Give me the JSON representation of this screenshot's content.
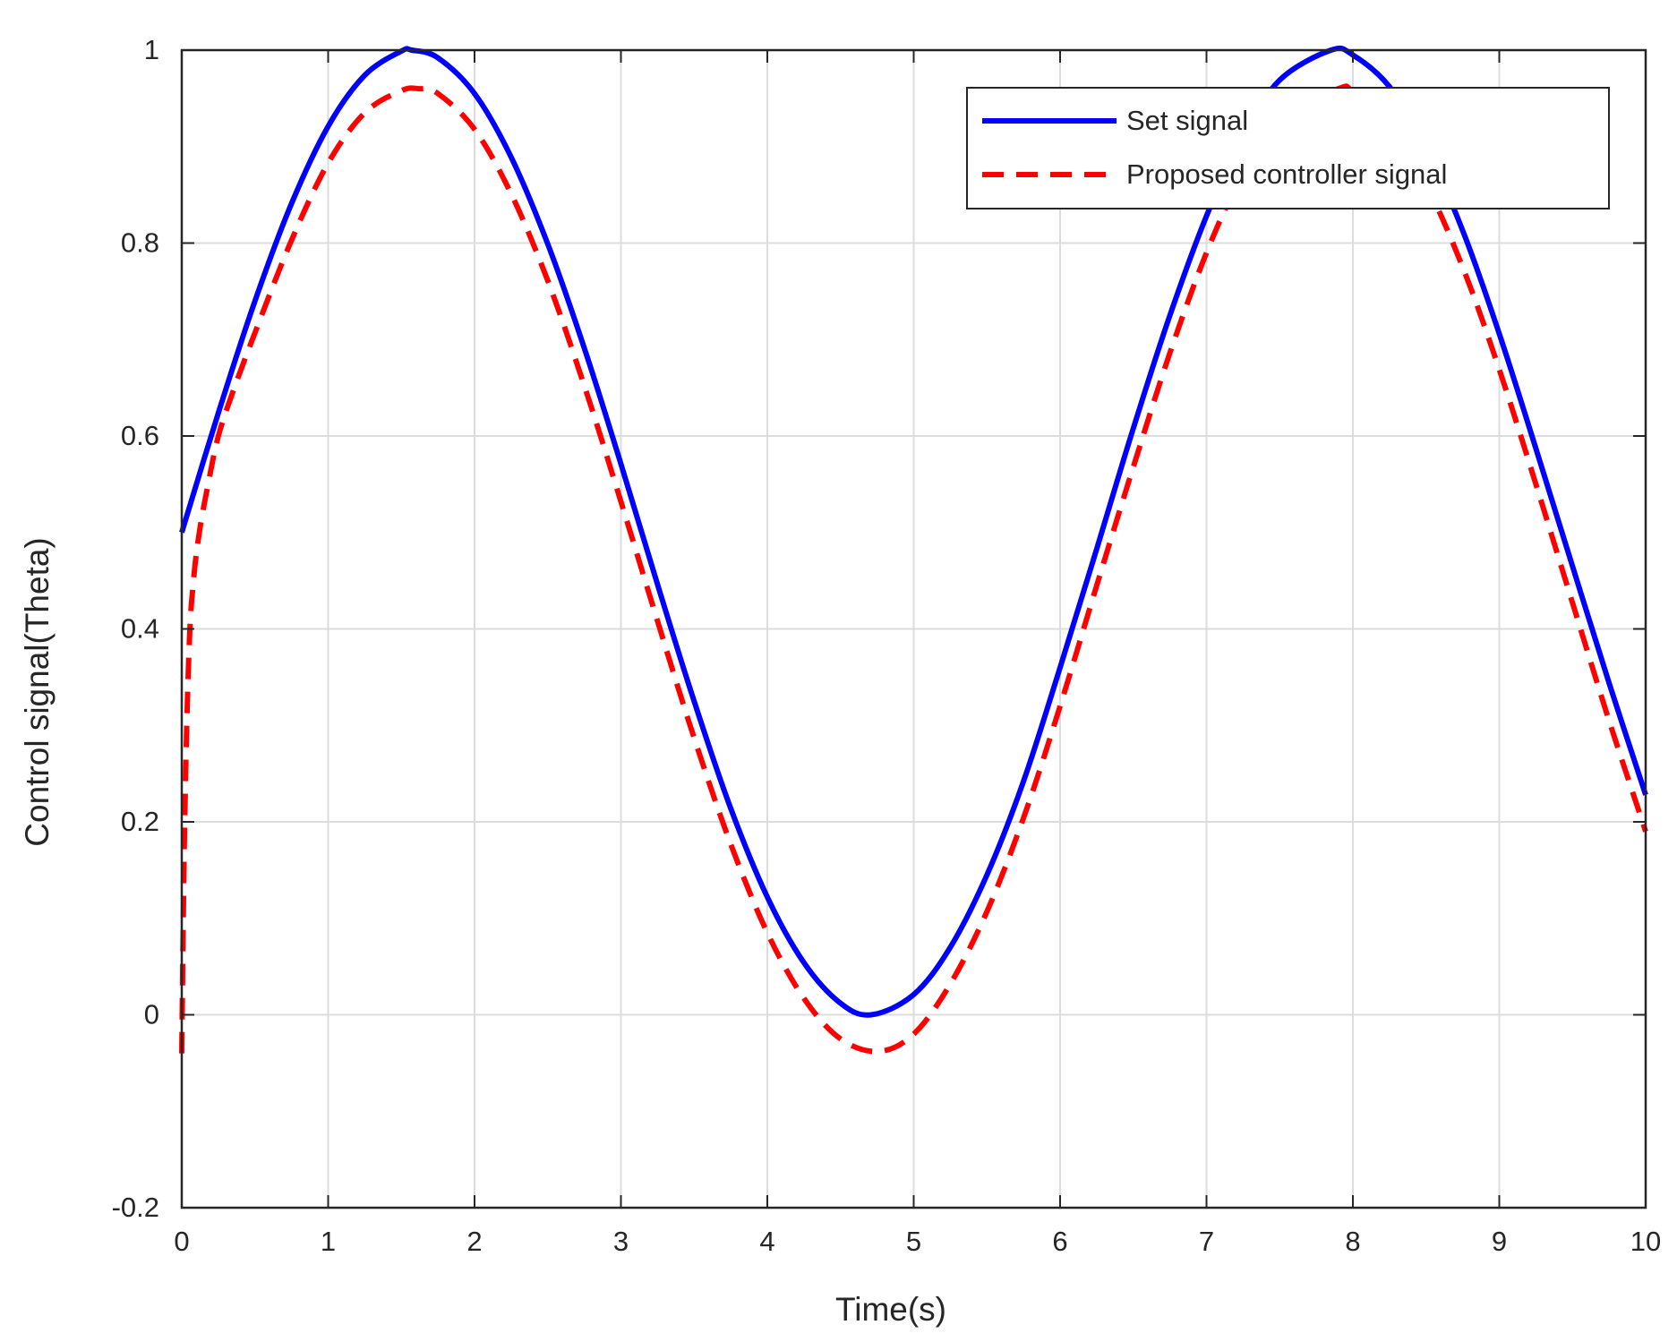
{
  "chart_data": {
    "type": "line",
    "title": "",
    "xlabel": "Time(s)",
    "ylabel": "Control signal(Theta)",
    "xlim": [
      0,
      10
    ],
    "ylim": [
      -0.2,
      1
    ],
    "grid": true,
    "xticks": [
      0,
      1,
      2,
      3,
      4,
      5,
      6,
      7,
      8,
      9,
      10
    ],
    "xtick_labels": [
      "0",
      "1",
      "2",
      "3",
      "4",
      "5",
      "6",
      "7",
      "8",
      "9",
      "10"
    ],
    "yticks": [
      -0.2,
      0,
      0.2,
      0.4,
      0.6,
      0.8,
      1
    ],
    "ytick_labels": [
      "-0.2",
      "0",
      "0.2",
      "0.4",
      "0.6",
      "0.8",
      "1"
    ],
    "legend_position": "top-right",
    "series": [
      {
        "name": "Set signal",
        "color": "#0000ff",
        "style": "solid",
        "x": [
          0,
          0.25,
          0.5,
          0.75,
          1,
          1.25,
          1.5,
          1.57,
          1.75,
          2,
          2.25,
          2.5,
          2.75,
          3,
          3.25,
          3.5,
          3.75,
          4,
          4.25,
          4.5,
          4.71,
          5,
          5.25,
          5.5,
          5.75,
          6,
          6.25,
          6.5,
          6.75,
          7,
          7.25,
          7.5,
          7.85,
          8,
          8.25,
          8.5,
          8.75,
          9,
          9.25,
          9.5,
          9.75,
          10
        ],
        "y": [
          0.5,
          0.624,
          0.74,
          0.841,
          0.921,
          0.974,
          0.999,
          1.0,
          0.992,
          0.955,
          0.889,
          0.799,
          0.691,
          0.571,
          0.446,
          0.325,
          0.214,
          0.122,
          0.054,
          0.012,
          0.0,
          0.021,
          0.07,
          0.145,
          0.242,
          0.36,
          0.483,
          0.608,
          0.725,
          0.828,
          0.911,
          0.969,
          1.0,
          0.995,
          0.962,
          0.899,
          0.813,
          0.706,
          0.587,
          0.465,
          0.344,
          0.228
        ]
      },
      {
        "name": "Proposed controller signal",
        "color": "#ff0000",
        "style": "dashed",
        "x": [
          0,
          0.02,
          0.05,
          0.08,
          0.12,
          0.18,
          0.25,
          0.35,
          0.5,
          0.75,
          1,
          1.25,
          1.5,
          1.62,
          1.75,
          2,
          2.25,
          2.5,
          2.75,
          3,
          3.25,
          3.5,
          3.75,
          4,
          4.25,
          4.5,
          4.76,
          5,
          5.25,
          5.5,
          5.75,
          6,
          6.25,
          6.5,
          6.75,
          7,
          7.25,
          7.5,
          7.9,
          8,
          8.25,
          8.5,
          8.75,
          9,
          9.25,
          9.5,
          9.75,
          10
        ],
        "y": [
          -0.04,
          0.2,
          0.38,
          0.45,
          0.5,
          0.55,
          0.6,
          0.646,
          0.707,
          0.803,
          0.883,
          0.935,
          0.958,
          0.96,
          0.955,
          0.918,
          0.851,
          0.761,
          0.652,
          0.532,
          0.408,
          0.287,
          0.177,
          0.085,
          0.017,
          -0.025,
          -0.038,
          -0.02,
          0.032,
          0.107,
          0.204,
          0.32,
          0.445,
          0.568,
          0.686,
          0.79,
          0.873,
          0.93,
          0.96,
          0.957,
          0.923,
          0.861,
          0.775,
          0.669,
          0.55,
          0.427,
          0.305,
          0.19
        ]
      }
    ]
  }
}
